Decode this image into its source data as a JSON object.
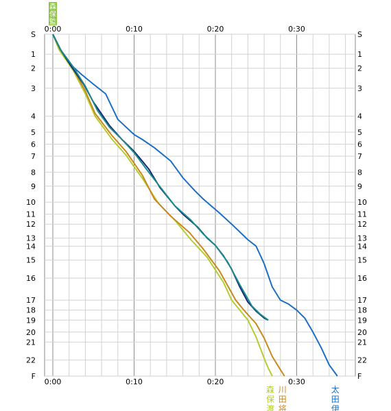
{
  "chart_data": {
    "type": "line",
    "title": "",
    "legend_corner_label": "森保監",
    "legend_corner_color": "#8dc63f",
    "x_axis": {
      "unit": "minutes",
      "range": [
        0,
        37
      ],
      "tick_labels": [
        {
          "value": 0,
          "label": "0:00"
        },
        {
          "value": 10,
          "label": "0:10"
        },
        {
          "value": 20,
          "label": "0:20"
        },
        {
          "value": 30,
          "label": "0:30"
        }
      ],
      "minor_step": 2,
      "label_positions": "top and bottom"
    },
    "y_axis": {
      "categories": [
        "S",
        "1",
        "2",
        "3",
        "4",
        "5",
        "6",
        "7",
        "8",
        "9",
        "10",
        "11",
        "12",
        "13",
        "14",
        "15",
        "16",
        "17",
        "18",
        "19",
        "20",
        "21",
        "22",
        "F"
      ],
      "cumulative_distance": [
        0,
        1.0,
        1.7,
        2.7,
        4.1,
        4.9,
        5.5,
        6.1,
        6.9,
        7.6,
        8.4,
        9.0,
        9.5,
        10.2,
        10.6,
        11.3,
        12.2,
        13.3,
        13.8,
        14.3,
        14.9,
        15.4,
        16.3,
        17.1
      ],
      "label_positions": "left and right",
      "orientation": "top-to-bottom"
    },
    "grid": true,
    "series": [
      {
        "name": "森保渡",
        "color": "#b5cc2e",
        "points": [
          [
            0,
            0
          ],
          [
            0.8,
            0.8
          ],
          [
            2.5,
            2.1
          ],
          [
            4,
            3.2
          ],
          [
            5.2,
            4.0
          ],
          [
            7.3,
            5.6
          ],
          [
            9,
            6.9
          ],
          [
            11.2,
            8.6
          ],
          [
            13,
            10.1
          ],
          [
            15,
            11.6
          ],
          [
            17,
            13.2
          ],
          [
            19,
            14.8
          ],
          [
            21,
            16.2
          ],
          [
            22,
            17.0
          ],
          [
            24,
            19.0
          ],
          [
            25,
            20.5
          ],
          [
            26,
            21.9
          ],
          [
            26.5,
            22.5
          ],
          [
            27,
            23.0
          ]
        ]
      },
      {
        "name": "川田将",
        "color": "#c8891e",
        "points": [
          [
            0,
            0
          ],
          [
            0.8,
            0.7
          ],
          [
            2.5,
            2.0
          ],
          [
            4,
            3.1
          ],
          [
            5.2,
            3.9
          ],
          [
            7.3,
            5.3
          ],
          [
            9,
            6.6
          ],
          [
            11,
            8.2
          ],
          [
            12.5,
            9.8
          ],
          [
            14.5,
            11.2
          ],
          [
            16.8,
            12.6
          ],
          [
            18.5,
            14.2
          ],
          [
            20.5,
            15.6
          ],
          [
            22.5,
            17.0
          ],
          [
            23.5,
            18.0
          ],
          [
            25,
            19.3
          ],
          [
            26,
            20.6
          ],
          [
            27,
            21.8
          ],
          [
            28,
            22.6
          ],
          [
            28.5,
            23.0
          ]
        ]
      },
      {
        "name": "太田伊",
        "color": "#1a6fc4",
        "points": [
          [
            0,
            0
          ],
          [
            1,
            0.8
          ],
          [
            2.5,
            1.9
          ],
          [
            3.5,
            2.3
          ],
          [
            5,
            2.8
          ],
          [
            6.5,
            3.2
          ],
          [
            8,
            4.2
          ],
          [
            10,
            5.2
          ],
          [
            11,
            5.6
          ],
          [
            12.5,
            6.3
          ],
          [
            14.5,
            7.3
          ],
          [
            16,
            8.4
          ],
          [
            17.5,
            9.3
          ],
          [
            18.5,
            9.8
          ],
          [
            20.5,
            10.9
          ],
          [
            22,
            12.0
          ],
          [
            24,
            13.2
          ],
          [
            25,
            14.0
          ],
          [
            26,
            15.2
          ],
          [
            27,
            16.4
          ],
          [
            28,
            17.0
          ],
          [
            29,
            17.4
          ],
          [
            30,
            18.0
          ],
          [
            31,
            18.8
          ],
          [
            32,
            20.0
          ],
          [
            33,
            21.3
          ],
          [
            34,
            22.3
          ],
          [
            35,
            23.0
          ]
        ]
      },
      {
        "name": "",
        "color": "#0f2a7a",
        "points": [
          [
            0,
            0
          ],
          [
            1,
            0.8
          ],
          [
            2.3,
            1.9
          ],
          [
            3.8,
            2.8
          ],
          [
            5,
            3.5
          ],
          [
            7,
            4.6
          ],
          [
            8.5,
            5.6
          ],
          [
            10,
            6.6
          ],
          [
            11,
            7.3
          ],
          [
            11.8,
            7.8
          ],
          [
            13.2,
            9.1
          ],
          [
            14,
            9.6
          ],
          [
            15,
            10.3
          ],
          [
            16,
            11.0
          ],
          [
            17.8,
            12.2
          ],
          [
            19,
            13.0
          ],
          [
            20,
            13.9
          ],
          [
            21,
            14.7
          ],
          [
            22,
            15.5
          ],
          [
            23,
            16.4
          ],
          [
            24,
            17.2
          ],
          [
            25,
            18.1
          ],
          [
            26,
            18.8
          ],
          [
            26.5,
            19.0
          ]
        ]
      },
      {
        "name": "",
        "color": "#1a8a8a",
        "points": [
          [
            0,
            0
          ],
          [
            1,
            0.8
          ],
          [
            2.5,
            1.9
          ],
          [
            4,
            2.9
          ],
          [
            5.5,
            3.8
          ],
          [
            7,
            4.7
          ],
          [
            8.5,
            5.6
          ],
          [
            10,
            6.7
          ],
          [
            11.5,
            7.8
          ],
          [
            13,
            8.9
          ],
          [
            15,
            10.3
          ],
          [
            17,
            11.6
          ],
          [
            18.5,
            12.7
          ],
          [
            20,
            13.9
          ],
          [
            21.5,
            15.1
          ],
          [
            23,
            16.3
          ],
          [
            24.5,
            17.6
          ],
          [
            25.5,
            18.4
          ],
          [
            26.5,
            19.0
          ]
        ]
      }
    ]
  }
}
